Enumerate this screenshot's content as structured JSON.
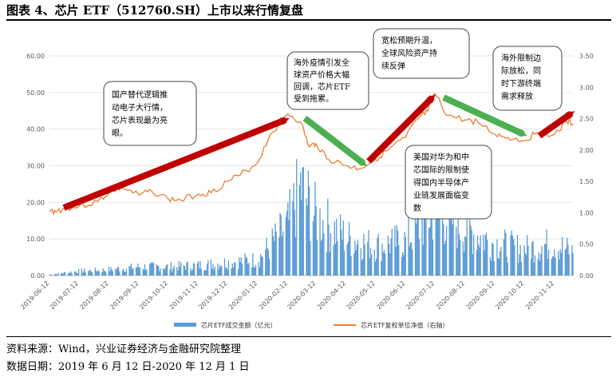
{
  "figure": {
    "title": "图表 4、芯片 ETF（512760.SH）上市以来行情复盘",
    "source": "资料来源：Wind，兴业证券经济与金融研究院整理",
    "date_range": "数据日期：2019 年 6 月 12 日-2020 年 12 月 1 日"
  },
  "colors": {
    "bars": "#5b9bd5",
    "line": "#ed7d31",
    "up_arrow": "#c00000",
    "down_arrow": "#4caf50"
  },
  "annotations": [
    {
      "id": "ann1",
      "lines": [
        "国产替代逻辑推",
        "动电子大行情，",
        "芯片表现最为亮",
        "眼。"
      ]
    },
    {
      "id": "ann2",
      "lines": [
        "海外疫情引发全",
        "球资产价格大幅",
        "回调，芯片ETF",
        "受到拖累。"
      ]
    },
    {
      "id": "ann3",
      "lines": [
        "宽松预期升温，",
        "全球风险资产持",
        "续反弹"
      ]
    },
    {
      "id": "ann4",
      "lines": [
        "美国对华为和中",
        "芯国际的限制使",
        "得国内半导体产",
        "业链发展面临变",
        "数"
      ]
    },
    {
      "id": "ann5",
      "lines": [
        "海外限制边",
        "际放松，同",
        "时下游终端",
        "需求释放"
      ]
    }
  ],
  "chart_data": {
    "type": "bar+line",
    "title": "",
    "left_axis": {
      "ticks": [
        "0.00",
        "10.00",
        "20.00",
        "30.00",
        "40.00",
        "50.00",
        "60.00"
      ],
      "ylim": [
        0,
        60
      ]
    },
    "right_axis": {
      "ticks": [
        "0.00",
        "0.50",
        "1.00",
        "1.50",
        "2.00",
        "2.50",
        "3.00",
        "3.50"
      ],
      "ylim": [
        0,
        3.5
      ]
    },
    "x_ticks": [
      "2019-06-12",
      "2019-07-12",
      "2019-08-12",
      "2019-09-12",
      "2019-10-12",
      "2019-11-12",
      "2019-12-12",
      "2020-01-12",
      "2020-02-12",
      "2020-03-12",
      "2020-04-12",
      "2020-05-12",
      "2020-06-12",
      "2020-07-12",
      "2020-08-12",
      "2020-09-12",
      "2020-10-12",
      "2020-11-12"
    ],
    "legend": [
      "芯片ETF成交金额（亿元）",
      "芯片ETF复权单位净值（右轴）"
    ],
    "legend_position": "bottom",
    "series": [
      {
        "name": "芯片ETF成交金额（亿元）",
        "axis": "left",
        "kind": "bar",
        "x": [
          "2019-06-12",
          "2019-07-12",
          "2019-08-12",
          "2019-09-12",
          "2019-10-12",
          "2019-11-12",
          "2019-12-12",
          "2020-01-12",
          "2020-02-12",
          "2020-02-25",
          "2020-03-12",
          "2020-04-12",
          "2020-05-12",
          "2020-06-12",
          "2020-07-12",
          "2020-08-12",
          "2020-09-12",
          "2020-10-12",
          "2020-11-12",
          "2020-12-01"
        ],
        "values": [
          0.3,
          1.5,
          2.0,
          3.0,
          3.0,
          3.5,
          4.5,
          5.5,
          17.0,
          30.0,
          20.0,
          13.0,
          10.0,
          12.0,
          22.0,
          16.0,
          11.0,
          9.0,
          11.0,
          8.0
        ]
      },
      {
        "name": "芯片ETF复权单位净值（右轴）",
        "axis": "right",
        "kind": "line",
        "x": [
          "2019-06-12",
          "2019-06-20",
          "2019-07-01",
          "2019-07-12",
          "2019-08-01",
          "2019-08-12",
          "2019-08-25",
          "2019-09-12",
          "2019-09-25",
          "2019-10-12",
          "2019-10-25",
          "2019-11-12",
          "2019-11-25",
          "2019-12-12",
          "2019-12-25",
          "2020-01-12",
          "2020-01-25",
          "2020-02-12",
          "2020-02-25",
          "2020-03-05",
          "2020-03-12",
          "2020-03-25",
          "2020-04-12",
          "2020-04-25",
          "2020-05-12",
          "2020-05-25",
          "2020-06-12",
          "2020-06-25",
          "2020-07-05",
          "2020-07-12",
          "2020-07-25",
          "2020-08-12",
          "2020-08-25",
          "2020-09-12",
          "2020-09-25",
          "2020-10-12",
          "2020-10-25",
          "2020-11-12",
          "2020-11-25",
          "2020-12-01"
        ],
        "values": [
          1.02,
          1.03,
          1.08,
          1.1,
          1.18,
          1.32,
          1.4,
          1.28,
          1.35,
          1.22,
          1.2,
          1.3,
          1.32,
          1.5,
          1.6,
          1.8,
          2.25,
          2.58,
          2.45,
          2.05,
          2.1,
          1.85,
          1.75,
          1.7,
          1.85,
          2.0,
          2.2,
          2.5,
          2.62,
          2.9,
          2.55,
          2.48,
          2.45,
          2.25,
          2.2,
          2.15,
          2.28,
          2.25,
          2.45,
          2.42
        ]
      }
    ]
  }
}
